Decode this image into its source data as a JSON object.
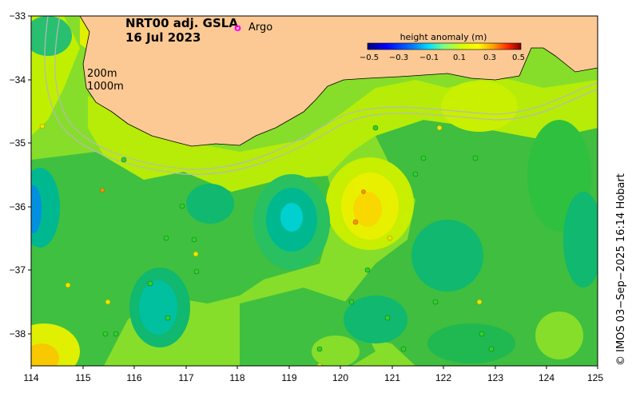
{
  "title": {
    "line1": "NRT00 adj. GSLA",
    "line2": "16 Jul 2023"
  },
  "argo": {
    "marker": "o",
    "label": "Argo",
    "color": "#ff00ff"
  },
  "contours": {
    "c200": "200m",
    "c1000": "1000m"
  },
  "colorbar": {
    "title": "height anomaly (m)",
    "ticks": [
      "−0.5",
      "−0.3",
      "−0.1",
      "0.1",
      "0.3",
      "0.5"
    ],
    "colors": [
      "#00007f",
      "#0000ff",
      "#0080ff",
      "#00ffff",
      "#80ff80",
      "#c8ff00",
      "#ffff00",
      "#ff8000",
      "#ff0000",
      "#7f0000"
    ]
  },
  "credit": "© IMOS 03−Sep−2025 16:14 Hobart",
  "axes": {
    "x_ticks": [
      "114",
      "115",
      "116",
      "117",
      "118",
      "119",
      "120",
      "121",
      "122",
      "123",
      "124",
      "125"
    ],
    "y_ticks": [
      "−33",
      "−34",
      "−35",
      "−36",
      "−37",
      "−38"
    ]
  },
  "colors": {
    "land": "#fcc994",
    "sea_base": "#55cc30",
    "contour": "#b8b8b8"
  }
}
